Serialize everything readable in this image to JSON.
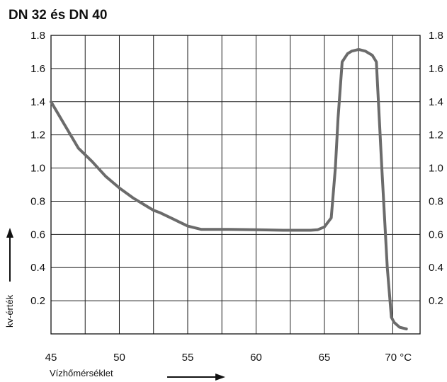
{
  "chart_data": {
    "type": "line",
    "title": "DN 32 és DN 40",
    "xlabel": "Vízhőmérséklet",
    "ylabel": "kv-érték",
    "x_unit_label": "70 °C",
    "xlim": [
      45,
      72
    ],
    "ylim": [
      0,
      1.8
    ],
    "x_ticks": [
      45,
      50,
      55,
      60,
      65,
      70
    ],
    "x_tick_labels": [
      "45",
      "50",
      "55",
      "60",
      "65",
      "70 °C"
    ],
    "y_ticks": [
      0.2,
      0.4,
      0.6,
      0.8,
      1.0,
      1.2,
      1.4,
      1.6,
      1.8
    ],
    "y_tick_labels": [
      "0.2",
      "0.4",
      "0.6",
      "0.8",
      "1.0",
      "1.2",
      "1.4",
      "1.6",
      "1.8"
    ],
    "grid": true,
    "line_color": "#6b6b6b",
    "series": [
      {
        "name": "",
        "x": [
          45,
          46,
          47,
          48,
          49,
          50,
          51,
          52,
          52.5,
          53,
          54,
          55,
          56,
          58,
          60,
          62,
          64,
          64.5,
          65,
          65.5,
          65.8,
          66,
          66.3,
          66.7,
          67,
          67.5,
          68,
          68.5,
          68.8,
          69.2,
          69.6,
          69.9,
          70.1,
          70.5,
          71
        ],
        "y": [
          1.4,
          1.26,
          1.12,
          1.04,
          0.95,
          0.88,
          0.82,
          0.77,
          0.745,
          0.73,
          0.69,
          0.65,
          0.63,
          0.63,
          0.628,
          0.625,
          0.625,
          0.628,
          0.645,
          0.7,
          1.0,
          1.3,
          1.64,
          1.69,
          1.705,
          1.715,
          1.705,
          1.68,
          1.64,
          1.0,
          0.4,
          0.1,
          0.07,
          0.04,
          0.03
        ]
      }
    ]
  }
}
